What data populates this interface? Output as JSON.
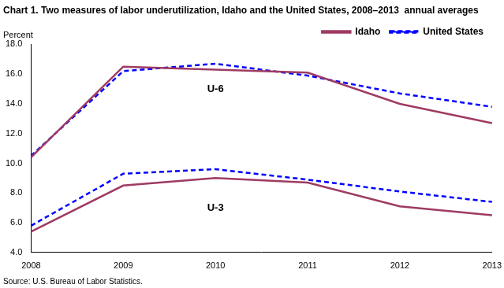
{
  "chart_data": {
    "type": "line",
    "title": "Chart 1. Two measures of labor underutilization, Idaho and the United States, 2008–2013  annual averages",
    "y_label": "Percent",
    "source": "Source: U.S. Bureau of Labor Statistics.",
    "categories": [
      "2008",
      "2009",
      "2010",
      "2011",
      "2012",
      "2013"
    ],
    "series": [
      {
        "name": "Idaho",
        "color": "#9e3b62",
        "line_style": "solid",
        "values": [
          10.4,
          16.5,
          16.3,
          16.1,
          14.0,
          12.7
        ]
      },
      {
        "name": "United States",
        "color": "#0000ff",
        "line_style": "dashed",
        "values": [
          10.5,
          16.2,
          16.7,
          15.9,
          14.7,
          13.8
        ]
      },
      {
        "name": "Idaho",
        "color": "#9e3b62",
        "line_style": "solid",
        "values": [
          5.4,
          8.5,
          9.0,
          8.7,
          7.1,
          6.5
        ]
      },
      {
        "name": "United States",
        "color": "#0000ff",
        "line_style": "dashed",
        "values": [
          5.8,
          9.3,
          9.6,
          8.9,
          8.1,
          7.4
        ]
      }
    ],
    "annotations": [
      {
        "text": "U-6",
        "x": "2010",
        "y": 15.0
      },
      {
        "text": "U-3",
        "x": "2010",
        "y": 7.0
      }
    ],
    "ylim": [
      4.0,
      18.0
    ],
    "yticks": [
      {
        "value": 4,
        "label": "4.0"
      },
      {
        "value": 6,
        "label": "6.0"
      },
      {
        "value": 8,
        "label": "8.0"
      },
      {
        "value": 10,
        "label": "10.0"
      },
      {
        "value": 12,
        "label": "12.0"
      },
      {
        "value": 14,
        "label": "14.0"
      },
      {
        "value": 16,
        "label": "16.0"
      },
      {
        "value": 18,
        "label": "18.0"
      }
    ],
    "grid": false,
    "legend": "upper right"
  }
}
